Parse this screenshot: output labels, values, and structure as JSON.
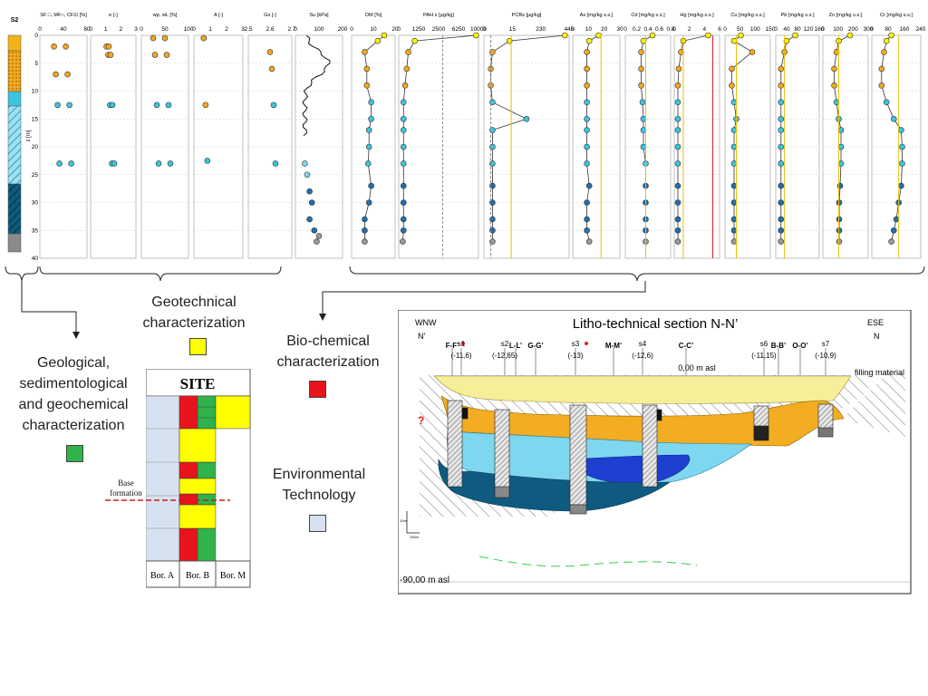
{
  "profile": {
    "borehole": "S2",
    "depth_label": "z [m]",
    "depth_ticks": [
      "0",
      "5",
      "10",
      "15",
      "20",
      "25",
      "30",
      "35",
      "40"
    ],
    "panels": [
      {
        "title": "SF □, MF○, CF⊡ [%]",
        "ticks": [
          "0",
          "40",
          "80"
        ]
      },
      {
        "title": "e [-]",
        "ticks": [
          "0",
          "1",
          "2",
          "3"
        ]
      },
      {
        "title": "wp, wL [%]",
        "ticks": [
          "0",
          "50",
          "100"
        ]
      },
      {
        "title": "A [-]",
        "ticks": [
          "0",
          "1",
          "2",
          "3"
        ]
      },
      {
        "title": "Gs [-]",
        "ticks": [
          "2.5",
          "2.6",
          "2.7"
        ]
      },
      {
        "title": "Su [kPa]",
        "ticks": [
          "0",
          "100",
          "200"
        ]
      },
      {
        "title": "OM [%]",
        "ticks": [
          "0",
          "10",
          "20"
        ]
      },
      {
        "title": "PAH s [µg/kg]",
        "ticks": [
          "0",
          "1250",
          "2500",
          "6250",
          "10000"
        ]
      },
      {
        "title": "PCBs [µg/kg]",
        "ticks": [
          "0",
          "15",
          "230",
          "445"
        ]
      },
      {
        "title": "As [mg/kg s.s.]",
        "ticks": [
          "0",
          "10",
          "20",
          "30"
        ]
      },
      {
        "title": "Cd [mg/kg s.s.]",
        "ticks": [
          "0",
          "0.2",
          "0.4",
          "0.6",
          "0.8"
        ]
      },
      {
        "title": "Hg [mg/kg s.s.]",
        "ticks": [
          "0",
          "2",
          "4",
          "6"
        ]
      },
      {
        "title": "Cu [mg/kg s.s.]",
        "ticks": [
          "0",
          "50",
          "100",
          "150"
        ]
      },
      {
        "title": "Pb [mg/kg s.s.]",
        "ticks": [
          "0",
          "40",
          "80",
          "120",
          "160"
        ]
      },
      {
        "title": "Zn [mg/kg s.s.]",
        "ticks": [
          "0",
          "100",
          "200",
          "300"
        ]
      },
      {
        "title": "Cr [mg/kg s.s.]",
        "ticks": [
          "0",
          "80",
          "160",
          "240"
        ]
      }
    ]
  },
  "legend": {
    "geological": "Geological, sedimentological and geochemical characterization",
    "geotechnical": "Geotechnical characterization",
    "biochemical": "Bio-chemical characterization",
    "environmental": "Environmental Technology",
    "colors": {
      "geological": "#2fb34a",
      "geotechnical": "#ffff00",
      "biochemical": "#e8141c",
      "environmental": "#d7e2f1"
    }
  },
  "site": {
    "title": "SITE",
    "base_formation": "Base formation",
    "columns": [
      "Bor. A",
      "Bor. B",
      "Bor. M"
    ]
  },
  "section": {
    "title": "Litho-technical section N-N’",
    "left_dir": "WNW",
    "right_dir": "ESE",
    "left_ref": "N’",
    "right_ref": "N",
    "datum": "0,00 m asl",
    "bottom_datum": "-90,00 m asl",
    "filling": "filling material",
    "question": "?",
    "scale_v": "10m",
    "scale_h": "100m",
    "markers": [
      {
        "label": "F-F’",
        "sub": "",
        "star": true
      },
      {
        "label": "s1",
        "sub": "(-11,6)",
        "star": false
      },
      {
        "label": "s2",
        "sub": "(-12,65)",
        "star": false
      },
      {
        "label": "L-L’",
        "sub": "",
        "star": false
      },
      {
        "label": "G-G’",
        "sub": "",
        "star": false
      },
      {
        "label": "s3",
        "sub": "(-13)",
        "star": true
      },
      {
        "label": "M-M’",
        "sub": "",
        "star": false
      },
      {
        "label": "s4",
        "sub": "(-12,6)",
        "star": false
      },
      {
        "label": "C-C’",
        "sub": "",
        "star": false
      },
      {
        "label": "s6",
        "sub": "(-11,15)",
        "star": false
      },
      {
        "label": "B-B’",
        "sub": "",
        "star": false
      },
      {
        "label": "O-O’",
        "sub": "",
        "star": false
      },
      {
        "label": "s7",
        "sub": "(-10,9)",
        "star": false
      }
    ]
  }
}
